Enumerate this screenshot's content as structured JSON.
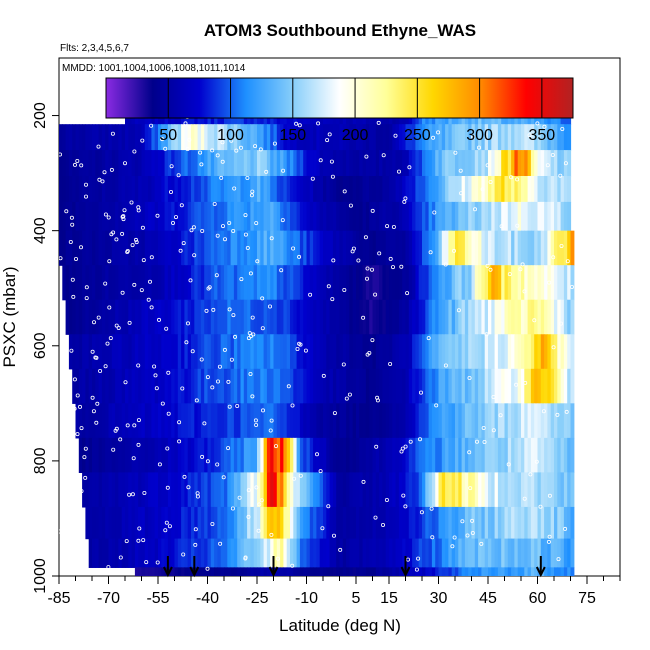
{
  "chart_data": {
    "type": "heatmap",
    "title": "ATOM3 Southbound Ethyne_WAS",
    "flights_label": "Flts: 2,3,4,5,6,7",
    "dates_label": "MMDD: 1001,1004,1006,1008,1011,1014",
    "xlabel": "Latitude (deg N)",
    "ylabel": "PSXC (mbar)",
    "xlim": [
      -85,
      85
    ],
    "ylim": [
      1000,
      100
    ],
    "x_ticks": [
      -85,
      -70,
      -55,
      -40,
      -25,
      -10,
      5,
      15,
      30,
      45,
      60,
      75
    ],
    "x_tick_labels": [
      "-85",
      "-70",
      "-55",
      "-40",
      "-25",
      "-10",
      "5",
      "15",
      "30",
      "45",
      "60",
      "75"
    ],
    "y_ticks": [
      200,
      400,
      600,
      800,
      1000
    ],
    "y_tick_labels": [
      "200",
      "400",
      "600",
      "800",
      "1000"
    ],
    "colorbar": {
      "range": [
        0,
        375
      ],
      "ticks": [
        50,
        100,
        150,
        200,
        250,
        300,
        350
      ],
      "tick_labels": [
        "50",
        "100",
        "150",
        "200",
        "250",
        "300",
        "350"
      ],
      "colors": [
        "#8a2be2",
        "#00008b",
        "#0000cd",
        "#1e90ff",
        "#87cefa",
        "#ffffff",
        "#ffff99",
        "#ffd700",
        "#ff8c00",
        "#ff0000",
        "#b22222"
      ]
    },
    "flight_latitudes": [
      -52,
      -44,
      -20,
      20,
      61
    ],
    "bands": [
      {
        "p_top": 180,
        "p_bot": 215,
        "lat_start": -65,
        "lat_end": 70,
        "anchors": [
          [
            -65,
            60
          ],
          [
            -30,
            90
          ],
          [
            -10,
            70
          ],
          [
            5,
            60
          ],
          [
            20,
            55
          ],
          [
            25,
            110
          ],
          [
            40,
            140
          ],
          [
            60,
            120
          ],
          [
            70,
            100
          ]
        ]
      },
      {
        "p_top": 215,
        "p_bot": 260,
        "lat_start": -85,
        "lat_end": 70,
        "anchors": [
          [
            -85,
            50
          ],
          [
            -60,
            60
          ],
          [
            -45,
            200
          ],
          [
            -35,
            160
          ],
          [
            -25,
            130
          ],
          [
            -15,
            70
          ],
          [
            0,
            60
          ],
          [
            15,
            50
          ],
          [
            25,
            110
          ],
          [
            40,
            150
          ],
          [
            55,
            170
          ],
          [
            70,
            120
          ]
        ]
      },
      {
        "p_top": 260,
        "p_bot": 305,
        "lat_start": -85,
        "lat_end": 70,
        "anchors": [
          [
            -85,
            40
          ],
          [
            -60,
            60
          ],
          [
            -40,
            120
          ],
          [
            -25,
            150
          ],
          [
            -15,
            110
          ],
          [
            -5,
            60
          ],
          [
            10,
            50
          ],
          [
            20,
            60
          ],
          [
            30,
            140
          ],
          [
            45,
            170
          ],
          [
            55,
            320
          ],
          [
            60,
            180
          ],
          [
            70,
            140
          ]
        ]
      },
      {
        "p_top": 305,
        "p_bot": 350,
        "lat_start": -85,
        "lat_end": 70,
        "anchors": [
          [
            -85,
            40
          ],
          [
            -60,
            60
          ],
          [
            -40,
            100
          ],
          [
            -25,
            130
          ],
          [
            -15,
            80
          ],
          [
            0,
            40
          ],
          [
            15,
            50
          ],
          [
            25,
            100
          ],
          [
            35,
            160
          ],
          [
            50,
            250
          ],
          [
            60,
            180
          ],
          [
            70,
            150
          ]
        ]
      },
      {
        "p_top": 350,
        "p_bot": 400,
        "lat_start": -85,
        "lat_end": 70,
        "anchors": [
          [
            -85,
            40
          ],
          [
            -55,
            70
          ],
          [
            -35,
            110
          ],
          [
            -20,
            130
          ],
          [
            -10,
            70
          ],
          [
            5,
            40
          ],
          [
            20,
            60
          ],
          [
            30,
            120
          ],
          [
            40,
            150
          ],
          [
            55,
            190
          ],
          [
            70,
            160
          ]
        ]
      },
      {
        "p_top": 400,
        "p_bot": 460,
        "lat_start": -85,
        "lat_end": 71,
        "anchors": [
          [
            -85,
            40
          ],
          [
            -55,
            60
          ],
          [
            -35,
            110
          ],
          [
            -20,
            130
          ],
          [
            -5,
            70
          ],
          [
            10,
            40
          ],
          [
            20,
            50
          ],
          [
            30,
            130
          ],
          [
            35,
            250
          ],
          [
            45,
            170
          ],
          [
            60,
            150
          ],
          [
            71,
            290
          ]
        ]
      },
      {
        "p_top": 460,
        "p_bot": 520,
        "lat_start": -84,
        "lat_end": 71,
        "anchors": [
          [
            -84,
            40
          ],
          [
            -55,
            60
          ],
          [
            -35,
            100
          ],
          [
            -20,
            110
          ],
          [
            -5,
            60
          ],
          [
            10,
            30
          ],
          [
            20,
            45
          ],
          [
            30,
            120
          ],
          [
            40,
            160
          ],
          [
            45,
            270
          ],
          [
            60,
            200
          ],
          [
            71,
            160
          ]
        ]
      },
      {
        "p_top": 520,
        "p_bot": 580,
        "lat_start": -83,
        "lat_end": 71,
        "anchors": [
          [
            -83,
            40
          ],
          [
            -55,
            70
          ],
          [
            -35,
            100
          ],
          [
            -20,
            100
          ],
          [
            -5,
            60
          ],
          [
            10,
            30
          ],
          [
            20,
            50
          ],
          [
            30,
            120
          ],
          [
            45,
            180
          ],
          [
            60,
            230
          ],
          [
            71,
            150
          ]
        ]
      },
      {
        "p_top": 580,
        "p_bot": 640,
        "lat_start": -82,
        "lat_end": 71,
        "anchors": [
          [
            -82,
            50
          ],
          [
            -55,
            70
          ],
          [
            -35,
            100
          ],
          [
            -20,
            110
          ],
          [
            -5,
            60
          ],
          [
            10,
            40
          ],
          [
            20,
            60
          ],
          [
            30,
            130
          ],
          [
            45,
            170
          ],
          [
            55,
            200
          ],
          [
            61,
            280
          ],
          [
            71,
            160
          ]
        ]
      },
      {
        "p_top": 640,
        "p_bot": 700,
        "lat_start": -81,
        "lat_end": 71,
        "anchors": [
          [
            -81,
            50
          ],
          [
            -55,
            70
          ],
          [
            -35,
            100
          ],
          [
            -20,
            110
          ],
          [
            -5,
            60
          ],
          [
            10,
            40
          ],
          [
            20,
            60
          ],
          [
            30,
            120
          ],
          [
            45,
            160
          ],
          [
            55,
            200
          ],
          [
            61,
            290
          ],
          [
            71,
            150
          ]
        ]
      },
      {
        "p_top": 700,
        "p_bot": 760,
        "lat_start": -80,
        "lat_end": 71,
        "anchors": [
          [
            -80,
            50
          ],
          [
            -55,
            70
          ],
          [
            -35,
            90
          ],
          [
            -20,
            100
          ],
          [
            -5,
            50
          ],
          [
            10,
            40
          ],
          [
            20,
            60
          ],
          [
            30,
            120
          ],
          [
            45,
            150
          ],
          [
            60,
            180
          ],
          [
            71,
            140
          ]
        ]
      },
      {
        "p_top": 760,
        "p_bot": 820,
        "lat_start": -79,
        "lat_end": 71,
        "anchors": [
          [
            -79,
            40
          ],
          [
            -55,
            60
          ],
          [
            -35,
            90
          ],
          [
            -25,
            130
          ],
          [
            -21,
            330
          ],
          [
            -17,
            340
          ],
          [
            -12,
            100
          ],
          [
            0,
            40
          ],
          [
            15,
            60
          ],
          [
            25,
            100
          ],
          [
            40,
            140
          ],
          [
            60,
            170
          ],
          [
            71,
            130
          ]
        ]
      },
      {
        "p_top": 820,
        "p_bot": 880,
        "lat_start": -78,
        "lat_end": 71,
        "anchors": [
          [
            -78,
            50
          ],
          [
            -55,
            70
          ],
          [
            -35,
            100
          ],
          [
            -24,
            200
          ],
          [
            -21,
            340
          ],
          [
            -17,
            280
          ],
          [
            -12,
            150
          ],
          [
            0,
            50
          ],
          [
            15,
            60
          ],
          [
            25,
            100
          ],
          [
            32,
            260
          ],
          [
            45,
            180
          ],
          [
            60,
            160
          ],
          [
            71,
            140
          ]
        ]
      },
      {
        "p_top": 880,
        "p_bot": 935,
        "lat_start": -77,
        "lat_end": 71,
        "anchors": [
          [
            -77,
            50
          ],
          [
            -55,
            70
          ],
          [
            -35,
            100
          ],
          [
            -24,
            180
          ],
          [
            -21,
            310
          ],
          [
            -17,
            250
          ],
          [
            -12,
            120
          ],
          [
            0,
            50
          ],
          [
            15,
            60
          ],
          [
            25,
            90
          ],
          [
            40,
            140
          ],
          [
            60,
            170
          ],
          [
            71,
            130
          ]
        ]
      },
      {
        "p_top": 935,
        "p_bot": 985,
        "lat_start": -76,
        "lat_end": 71,
        "anchors": [
          [
            -76,
            50
          ],
          [
            -55,
            70
          ],
          [
            -35,
            100
          ],
          [
            -22,
            170
          ],
          [
            -18,
            230
          ],
          [
            -12,
            110
          ],
          [
            0,
            50
          ],
          [
            15,
            60
          ],
          [
            25,
            90
          ],
          [
            40,
            140
          ],
          [
            60,
            140
          ],
          [
            71,
            120
          ]
        ]
      },
      {
        "p_top": 985,
        "p_bot": 1010,
        "lat_start": -62,
        "lat_end": 71,
        "anchors": [
          [
            -62,
            30
          ],
          [
            -45,
            40
          ],
          [
            -30,
            40
          ],
          [
            -20,
            60
          ],
          [
            -10,
            40
          ],
          [
            10,
            40
          ],
          [
            25,
            70
          ],
          [
            40,
            110
          ],
          [
            60,
            130
          ],
          [
            71,
            110
          ]
        ]
      }
    ]
  }
}
